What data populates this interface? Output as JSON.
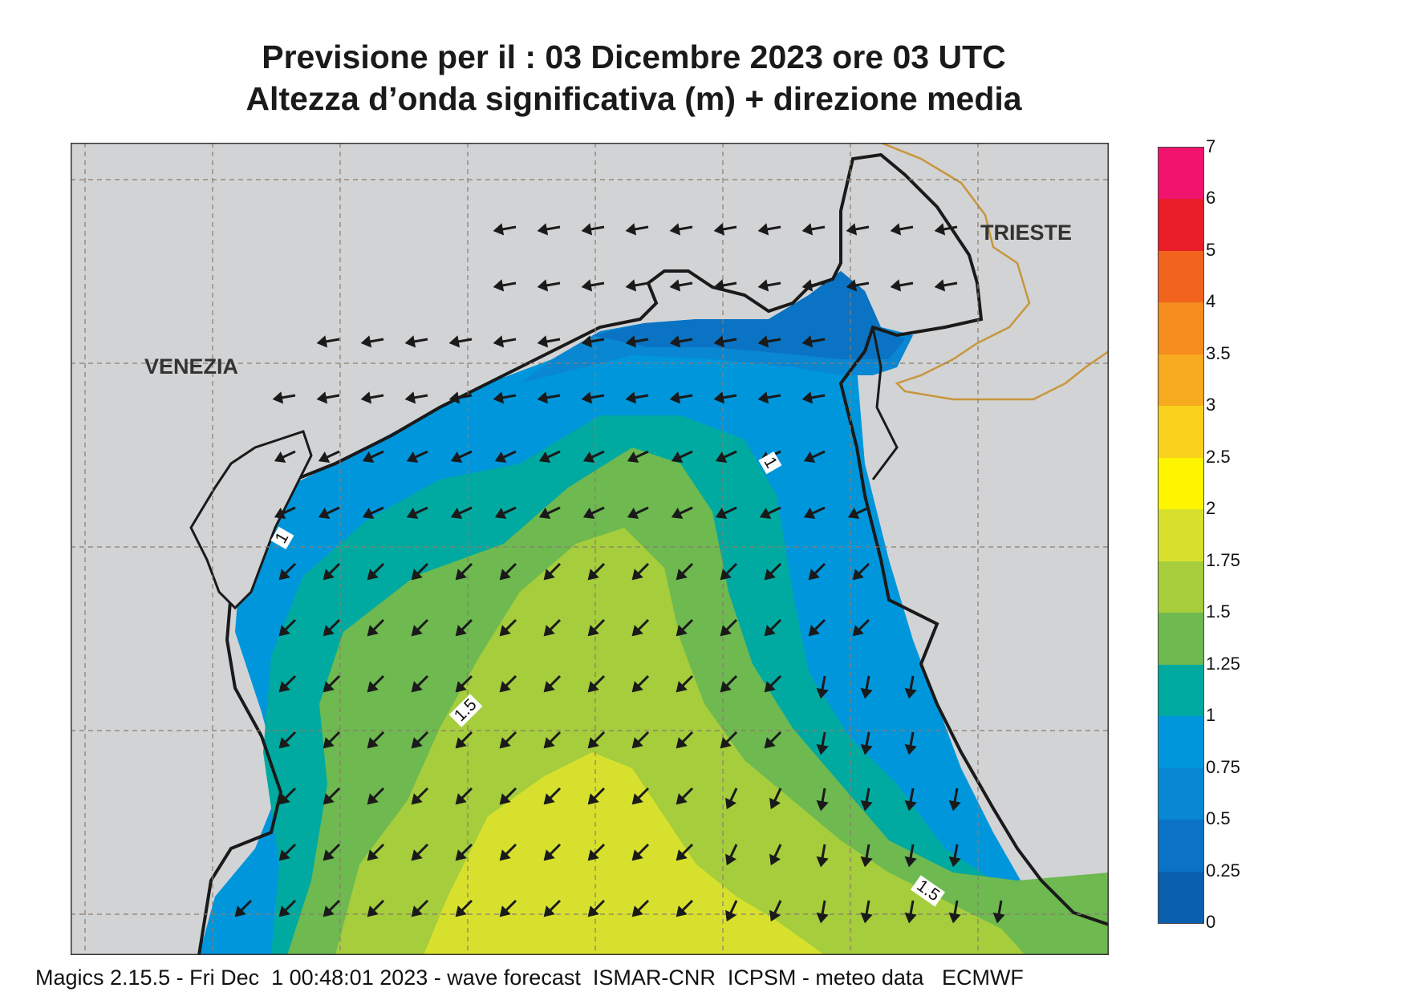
{
  "title": {
    "line1": "Previsione per il  :  03 Dicembre  2023   ore 03 UTC",
    "line2": "Altezza d’onda significativa (m) + direzione media"
  },
  "cities": {
    "venezia": "VENEZIA",
    "trieste": "TRIESTE"
  },
  "contour_labels": [
    "1",
    "1",
    "1.5",
    "1.5"
  ],
  "colorbar": {
    "labels": [
      "7",
      "6",
      "5",
      "4",
      "3.5",
      "3",
      "2.5",
      "2",
      "1.75",
      "1.5",
      "1.25",
      "1",
      "0.75",
      "0.5",
      "0.25",
      "0"
    ],
    "colors": [
      "#f0146e",
      "#e81e28",
      "#f0641e",
      "#f58c1e",
      "#f7aa1e",
      "#fad21e",
      "#fff500",
      "#d7e12d",
      "#a5cd3c",
      "#6eb950",
      "#00aaa0",
      "#0096dc",
      "#0a87d2",
      "#0a73c3",
      "#0a5faf"
    ]
  },
  "colors": {
    "land": "#d2d3d5",
    "sea_025": "#0a73c3",
    "sea_05": "#0a87d2",
    "sea_075": "#0096dc",
    "sea_1": "#00aaa0",
    "sea_125": "#6eb950",
    "sea_15": "#a5cd3c",
    "sea_175": "#d7e12d",
    "coast": "#1a1a1a",
    "border": "#c8963c"
  },
  "footer": "Magics 2.15.5 - Fri Dec  1 00:48:01 2023 - wave forecast  ISMAR-CNR  ICPSM - meteo data   ECMWF"
}
